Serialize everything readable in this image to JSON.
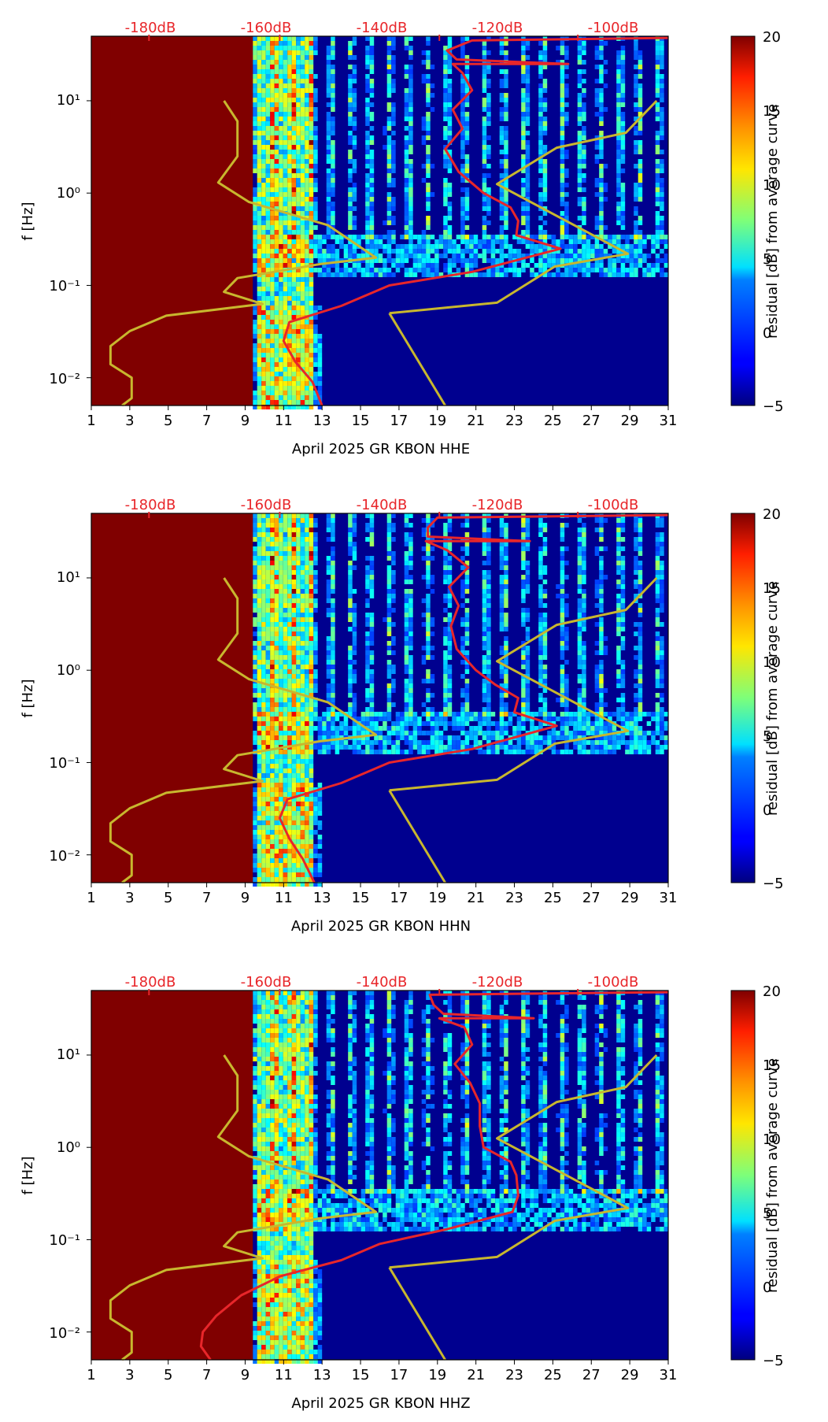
{
  "figure": {
    "month": "April 2025",
    "network": "GR",
    "station": "KBON"
  },
  "colorbar": {
    "label": "residual [dB] from average curve",
    "colormap": "jet",
    "ticks": [
      "20",
      "15",
      "10",
      "5",
      "0",
      "−5"
    ],
    "range": [
      -5,
      20
    ]
  },
  "colors": {
    "noise_model_curve": "#c8b72e",
    "median_curve": "#e8262a",
    "top_axis_text": "#e8262a",
    "no_data_fill": "#800000"
  },
  "chart_data": [
    {
      "type": "heatmap",
      "xlabel": "April 2025 GR KBON  HHE",
      "ylabel": "f [Hz]",
      "y_scale": "log",
      "ylim": [
        0.005,
        50
      ],
      "xlim": [
        1,
        31
      ],
      "x_ticks": [
        "1",
        "3",
        "5",
        "7",
        "9",
        "11",
        "13",
        "15",
        "17",
        "19",
        "21",
        "23",
        "25",
        "27",
        "29",
        "31"
      ],
      "y_ticks": [
        "10¹",
        "10⁰",
        "10⁻¹",
        "10⁻²"
      ],
      "top_ticks": [
        "-180dB",
        "-160dB",
        "-140dB",
        "-120dB",
        "-100dB"
      ],
      "no_data_until_day": 9.4,
      "noise_model_curve": [
        [
          7.9,
          10
        ],
        [
          8.6,
          6
        ],
        [
          8.6,
          2.5
        ],
        [
          7.6,
          1.3
        ],
        [
          9.2,
          0.8
        ],
        [
          13.3,
          0.45
        ],
        [
          15.8,
          0.2
        ],
        [
          12.9,
          0.17
        ],
        [
          8.6,
          0.12
        ],
        [
          7.9,
          0.085
        ],
        [
          9.9,
          0.063
        ],
        [
          4.9,
          0.047
        ],
        [
          3.0,
          0.032
        ],
        [
          2.0,
          0.022
        ],
        [
          2.0,
          0.014
        ],
        [
          3.1,
          0.01
        ],
        [
          3.1,
          0.006
        ],
        [
          2.6,
          0.005
        ]
      ],
      "noise_model_curve_high": [
        [
          16.5,
          0.05
        ],
        [
          22.1,
          0.065
        ],
        [
          25.1,
          0.16
        ],
        [
          28.9,
          0.22
        ],
        [
          22.1,
          1.25
        ],
        [
          25.2,
          3.1
        ],
        [
          28.8,
          4.5
        ],
        [
          30.4,
          10
        ]
      ],
      "noise_model_curve_low": [
        [
          16.5,
          0.05
        ],
        [
          19.4,
          0.005
        ]
      ],
      "median_curve": [
        [
          13.0,
          0.005
        ],
        [
          12.5,
          0.009
        ],
        [
          11.6,
          0.015
        ],
        [
          11.0,
          0.025
        ],
        [
          11.3,
          0.04
        ],
        [
          14.0,
          0.06
        ],
        [
          16.5,
          0.1
        ],
        [
          20.8,
          0.14
        ],
        [
          25.4,
          0.25
        ],
        [
          23.1,
          0.35
        ],
        [
          23.2,
          0.5
        ],
        [
          22.8,
          0.7
        ],
        [
          21.4,
          1.0
        ],
        [
          20.1,
          1.7
        ],
        [
          19.4,
          3.0
        ],
        [
          20.3,
          5.0
        ],
        [
          19.8,
          8.0
        ],
        [
          20.8,
          13
        ],
        [
          20.3,
          20
        ],
        [
          19.8,
          25
        ],
        [
          25.8,
          25
        ],
        [
          20.0,
          28
        ],
        [
          19.5,
          35
        ],
        [
          20.8,
          45
        ],
        [
          31.0,
          48
        ]
      ]
    },
    {
      "type": "heatmap",
      "xlabel": "April 2025 GR KBON  HHN",
      "ylabel": "f [Hz]",
      "y_scale": "log",
      "ylim": [
        0.005,
        50
      ],
      "xlim": [
        1,
        31
      ],
      "x_ticks": [
        "1",
        "3",
        "5",
        "7",
        "9",
        "11",
        "13",
        "15",
        "17",
        "19",
        "21",
        "23",
        "25",
        "27",
        "29",
        "31"
      ],
      "y_ticks": [
        "10¹",
        "10⁰",
        "10⁻¹",
        "10⁻²"
      ],
      "top_ticks": [
        "-180dB",
        "-160dB",
        "-140dB",
        "-120dB",
        "-100dB"
      ],
      "no_data_until_day": 9.4,
      "noise_model_curve": [
        [
          7.9,
          10
        ],
        [
          8.6,
          6
        ],
        [
          8.6,
          2.5
        ],
        [
          7.6,
          1.3
        ],
        [
          9.2,
          0.8
        ],
        [
          13.3,
          0.45
        ],
        [
          15.8,
          0.2
        ],
        [
          12.9,
          0.17
        ],
        [
          8.6,
          0.12
        ],
        [
          7.9,
          0.085
        ],
        [
          9.9,
          0.063
        ],
        [
          4.9,
          0.047
        ],
        [
          3.0,
          0.032
        ],
        [
          2.0,
          0.022
        ],
        [
          2.0,
          0.014
        ],
        [
          3.1,
          0.01
        ],
        [
          3.1,
          0.006
        ],
        [
          2.6,
          0.005
        ]
      ],
      "noise_model_curve_high": [
        [
          16.5,
          0.05
        ],
        [
          22.1,
          0.065
        ],
        [
          25.1,
          0.16
        ],
        [
          28.9,
          0.22
        ],
        [
          22.1,
          1.25
        ],
        [
          25.2,
          3.1
        ],
        [
          28.8,
          4.5
        ],
        [
          30.4,
          10
        ]
      ],
      "noise_model_curve_low": [
        [
          16.5,
          0.05
        ],
        [
          19.4,
          0.005
        ]
      ],
      "median_curve": [
        [
          12.6,
          0.005
        ],
        [
          12.0,
          0.009
        ],
        [
          11.3,
          0.015
        ],
        [
          10.8,
          0.025
        ],
        [
          11.2,
          0.04
        ],
        [
          14.0,
          0.06
        ],
        [
          16.5,
          0.1
        ],
        [
          20.8,
          0.14
        ],
        [
          25.2,
          0.25
        ],
        [
          23.0,
          0.35
        ],
        [
          23.2,
          0.5
        ],
        [
          22.0,
          0.7
        ],
        [
          21.0,
          1.0
        ],
        [
          20.0,
          1.7
        ],
        [
          19.7,
          3.0
        ],
        [
          20.1,
          5.0
        ],
        [
          19.6,
          8.0
        ],
        [
          20.6,
          13
        ],
        [
          19.5,
          20
        ],
        [
          18.4,
          25
        ],
        [
          23.8,
          25
        ],
        [
          18.5,
          28
        ],
        [
          18.5,
          35
        ],
        [
          19.0,
          45
        ],
        [
          31.0,
          48
        ]
      ]
    },
    {
      "type": "heatmap",
      "xlabel": "April 2025 GR KBON  HHZ",
      "ylabel": "f [Hz]",
      "y_scale": "log",
      "ylim": [
        0.005,
        50
      ],
      "xlim": [
        1,
        31
      ],
      "x_ticks": [
        "1",
        "3",
        "5",
        "7",
        "9",
        "11",
        "13",
        "15",
        "17",
        "19",
        "21",
        "23",
        "25",
        "27",
        "29",
        "31"
      ],
      "y_ticks": [
        "10¹",
        "10⁰",
        "10⁻¹",
        "10⁻²"
      ],
      "top_ticks": [
        "-180dB",
        "-160dB",
        "-140dB",
        "-120dB",
        "-100dB"
      ],
      "no_data_until_day": 9.4,
      "noise_model_curve": [
        [
          7.9,
          10
        ],
        [
          8.6,
          6
        ],
        [
          8.6,
          2.5
        ],
        [
          7.6,
          1.3
        ],
        [
          9.2,
          0.8
        ],
        [
          13.3,
          0.45
        ],
        [
          15.8,
          0.2
        ],
        [
          12.9,
          0.17
        ],
        [
          8.6,
          0.12
        ],
        [
          7.9,
          0.085
        ],
        [
          9.9,
          0.063
        ],
        [
          4.9,
          0.047
        ],
        [
          3.0,
          0.032
        ],
        [
          2.0,
          0.022
        ],
        [
          2.0,
          0.014
        ],
        [
          3.1,
          0.01
        ],
        [
          3.1,
          0.006
        ],
        [
          2.6,
          0.005
        ]
      ],
      "noise_model_curve_high": [
        [
          16.5,
          0.05
        ],
        [
          22.1,
          0.065
        ],
        [
          25.1,
          0.16
        ],
        [
          28.9,
          0.22
        ],
        [
          22.1,
          1.25
        ],
        [
          25.2,
          3.1
        ],
        [
          28.8,
          4.5
        ],
        [
          30.4,
          10
        ]
      ],
      "noise_model_curve_low": [
        [
          16.5,
          0.05
        ],
        [
          19.4,
          0.005
        ]
      ],
      "median_curve": [
        [
          7.2,
          0.005
        ],
        [
          6.7,
          0.007
        ],
        [
          6.8,
          0.01
        ],
        [
          7.5,
          0.015
        ],
        [
          8.8,
          0.025
        ],
        [
          10.8,
          0.04
        ],
        [
          14.0,
          0.06
        ],
        [
          16.0,
          0.09
        ],
        [
          19.5,
          0.13
        ],
        [
          22.9,
          0.2
        ],
        [
          23.2,
          0.3
        ],
        [
          23.1,
          0.5
        ],
        [
          22.8,
          0.7
        ],
        [
          21.4,
          1.0
        ],
        [
          21.2,
          1.7
        ],
        [
          21.2,
          3.0
        ],
        [
          20.7,
          5.0
        ],
        [
          19.9,
          8.0
        ],
        [
          20.8,
          13
        ],
        [
          20.4,
          20
        ],
        [
          19.1,
          25
        ],
        [
          24.0,
          25
        ],
        [
          19.3,
          28
        ],
        [
          18.8,
          35
        ],
        [
          18.6,
          45
        ],
        [
          31.0,
          48
        ]
      ]
    }
  ]
}
